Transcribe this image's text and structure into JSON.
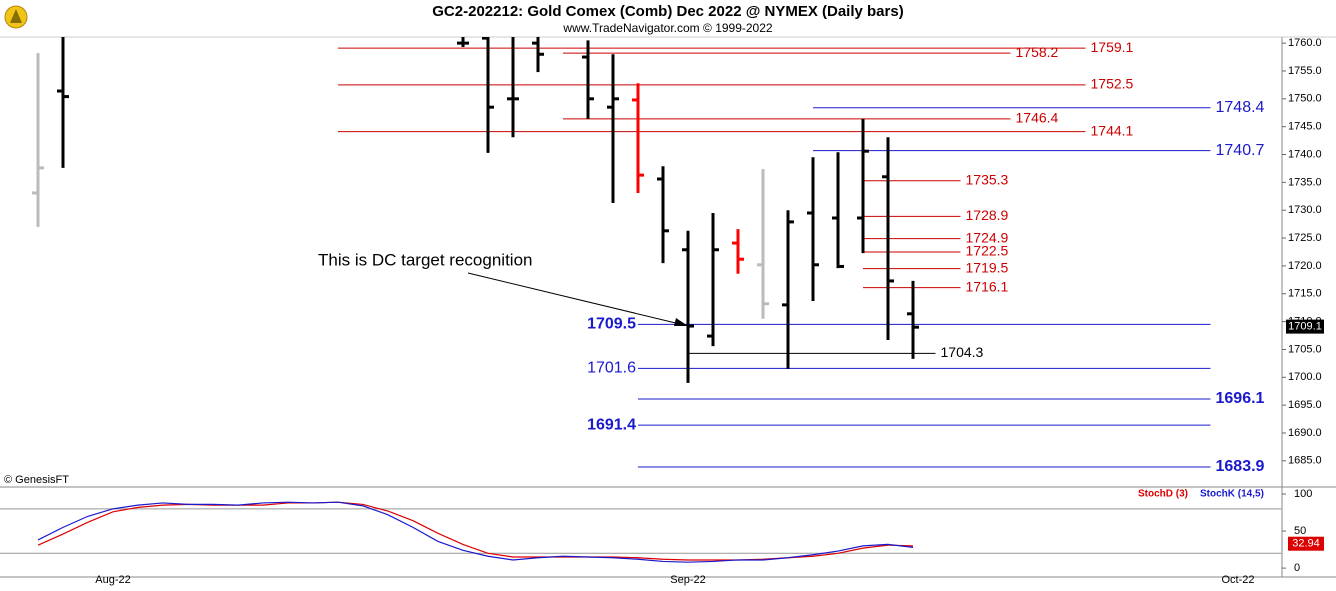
{
  "chart_data": [
    {
      "type": "ohlc",
      "title": "GC2-202212:  Gold Comex (Comb) Dec 2022 @ NYMEX  (Daily bars)",
      "subtitle": "www.TradeNavigator.com © 1999-2022",
      "copyright": "© GenesisFT",
      "categories": [
        null,
        null,
        null,
        "Aug-22",
        null,
        null,
        null,
        null,
        null,
        null,
        null,
        null,
        null,
        null,
        null,
        null,
        null,
        null,
        null,
        null,
        null,
        null,
        null,
        null,
        null,
        null,
        "Sep-22",
        null,
        null,
        null,
        null,
        null,
        null,
        null,
        null,
        null,
        null,
        null,
        null,
        null,
        null,
        null,
        null,
        null,
        null,
        null,
        null,
        null,
        "Oct-22",
        null
      ],
      "open": [
        1733.1,
        1751.4,
        null,
        null,
        null,
        null,
        null,
        null,
        null,
        null,
        null,
        null,
        null,
        null,
        null,
        null,
        null,
        1760,
        1760.9,
        1750,
        1760,
        null,
        1757.5,
        1748.5,
        1749.8,
        1735.6,
        1722.9,
        1707.4,
        1724.1,
        1720.2,
        1713.0,
        1729.5,
        1728.6,
        1728.6,
        1736.0,
        1711.4,
        null,
        null,
        null,
        null,
        null,
        null,
        null,
        null,
        null,
        null,
        null,
        null,
        null,
        null
      ],
      "high": [
        1758.2,
        1763,
        null,
        null,
        null,
        null,
        null,
        null,
        null,
        null,
        null,
        null,
        null,
        null,
        null,
        null,
        null,
        1763,
        1763,
        1763,
        1763,
        null,
        1760.5,
        1758.0,
        1752.8,
        1737.9,
        1726.3,
        1729.5,
        1726.6,
        1737.4,
        1730.0,
        1739.5,
        1740.4,
        1746.4,
        1743.1,
        1717.3,
        null,
        null,
        null,
        null,
        null,
        null,
        null,
        null,
        null,
        null,
        null,
        null,
        null,
        null
      ],
      "low": [
        1727.0,
        1737.6,
        null,
        null,
        null,
        null,
        null,
        null,
        null,
        null,
        null,
        null,
        null,
        null,
        null,
        null,
        null,
        1759.3,
        1740.3,
        1743.1,
        1754.8,
        null,
        1746.4,
        1731.3,
        1733.1,
        1720.5,
        1699.0,
        1705.6,
        1718.6,
        1710.5,
        1701.5,
        1713.7,
        1719.6,
        1722.3,
        1706.7,
        1703.3,
        null,
        null,
        null,
        null,
        null,
        null,
        null,
        null,
        null,
        null,
        null,
        null,
        null,
        null
      ],
      "close": [
        1737.6,
        1750.4,
        null,
        null,
        null,
        null,
        null,
        null,
        null,
        null,
        null,
        null,
        null,
        null,
        null,
        null,
        null,
        1760,
        1748.5,
        1750,
        1758,
        null,
        1750,
        1750,
        1736.3,
        1726.3,
        1709.2,
        1722.9,
        1721.2,
        1713.2,
        1727.9,
        1720.2,
        1719.9,
        1740.6,
        1717.3,
        1709.0,
        null,
        null,
        null,
        null,
        null,
        null,
        null,
        null,
        null,
        null,
        null,
        null,
        null,
        null
      ],
      "colors": [
        "#bbbbbb",
        "#000000",
        null,
        null,
        null,
        null,
        null,
        null,
        null,
        null,
        null,
        null,
        null,
        null,
        null,
        null,
        null,
        "#000000",
        "#000000",
        "#000000",
        "#000000",
        null,
        "#000000",
        "#000000",
        "#ff0000",
        "#000000",
        "#000000",
        "#000000",
        "#ff0000",
        "#bbbbbb",
        "#000000",
        "#000000",
        "#000000",
        "#000000",
        "#000000",
        "#000000",
        null,
        null,
        null,
        null,
        null,
        null,
        null,
        null,
        null,
        null,
        null,
        null,
        null,
        null
      ],
      "ylim": [
        1680.3,
        1761.1
      ],
      "yticks": [
        {
          "value": 1685,
          "label": "1685.0"
        },
        {
          "value": 1690,
          "label": "1690.0"
        },
        {
          "value": 1695,
          "label": "1695.0"
        },
        {
          "value": 1700,
          "label": "1700.0"
        },
        {
          "value": 1705,
          "label": "1705.0"
        },
        {
          "value": 1710,
          "label": "1710.0"
        },
        {
          "value": 1715,
          "label": "1715.0"
        },
        {
          "value": 1720,
          "label": "1720.0"
        },
        {
          "value": 1725,
          "label": "1725.0"
        },
        {
          "value": 1730,
          "label": "1730.0"
        },
        {
          "value": 1735,
          "label": "1735.0"
        },
        {
          "value": 1740,
          "label": "1740.0"
        },
        {
          "value": 1745,
          "label": "1745.0"
        },
        {
          "value": 1750,
          "label": "1750.0"
        },
        {
          "value": 1755,
          "label": "1755.0"
        },
        {
          "value": 1760,
          "label": "1760.0"
        }
      ],
      "levels": [
        {
          "value": 1759.1,
          "color": "#cc0000",
          "from": 12,
          "to": 41.9,
          "bold": false,
          "side": "right"
        },
        {
          "value": 1758.2,
          "color": "#cc0000",
          "from": 21,
          "to": 38.9,
          "bold": false,
          "side": "right"
        },
        {
          "value": 1752.5,
          "color": "#cc0000",
          "from": 12,
          "to": 41.9,
          "bold": false,
          "side": "right"
        },
        {
          "value": 1746.4,
          "color": "#cc0000",
          "from": 21,
          "to": 38.9,
          "bold": false,
          "side": "right"
        },
        {
          "value": 1744.1,
          "color": "#cc0000",
          "from": 12,
          "to": 41.9,
          "bold": false,
          "side": "right"
        },
        {
          "value": 1735.3,
          "color": "#cc0000",
          "from": 33,
          "to": 36.9,
          "bold": false,
          "side": "right"
        },
        {
          "value": 1728.9,
          "color": "#cc0000",
          "from": 33,
          "to": 36.9,
          "bold": false,
          "side": "right"
        },
        {
          "value": 1724.9,
          "color": "#cc0000",
          "from": 33,
          "to": 36.9,
          "bold": false,
          "side": "right"
        },
        {
          "value": 1722.5,
          "color": "#cc0000",
          "from": 33,
          "to": 36.9,
          "bold": false,
          "side": "right"
        },
        {
          "value": 1719.5,
          "color": "#cc0000",
          "from": 33,
          "to": 36.9,
          "bold": false,
          "side": "right"
        },
        {
          "value": 1716.1,
          "color": "#cc0000",
          "from": 33,
          "to": 36.9,
          "bold": false,
          "side": "right"
        },
        {
          "value": 1748.4,
          "color": "#1a1acc",
          "from": 31,
          "to": 46.9,
          "bold": false,
          "side": "right"
        },
        {
          "value": 1740.7,
          "color": "#1a1acc",
          "from": 31,
          "to": 46.9,
          "bold": false,
          "side": "right"
        },
        {
          "value": 1709.5,
          "color": "#1a1acc",
          "from": 24,
          "to": 46.9,
          "bold": true,
          "side": "left"
        },
        {
          "value": 1701.6,
          "color": "#1a1acc",
          "from": 24,
          "to": 46.9,
          "bold": false,
          "side": "left"
        },
        {
          "value": 1696.1,
          "color": "#1a1acc",
          "from": 24,
          "to": 46.9,
          "bold": true,
          "side": "right"
        },
        {
          "value": 1691.4,
          "color": "#1a1acc",
          "from": 24,
          "to": 46.9,
          "bold": true,
          "side": "left"
        },
        {
          "value": 1683.9,
          "color": "#1a1acc",
          "from": 24,
          "to": 46.9,
          "bold": true,
          "side": "right"
        },
        {
          "value": 1704.3,
          "color": "#000000",
          "from": 26,
          "to": 35.9,
          "bold": false,
          "side": "right"
        }
      ],
      "annotation": "This is DC target recognition",
      "last_price": 1709.1
    },
    {
      "type": "line",
      "series": [
        {
          "name": "StochD (3)",
          "color": "#dd0000",
          "values": [
            31,
            46,
            62,
            76,
            82,
            85,
            86,
            85,
            85,
            85,
            88,
            88,
            89,
            86,
            77,
            64,
            47,
            32,
            20,
            15,
            15,
            15,
            15,
            15,
            14,
            12,
            11,
            11,
            11,
            12,
            14,
            16,
            20,
            27,
            31,
            30,
            null,
            null,
            null,
            null,
            null,
            null,
            null,
            null,
            null,
            null,
            null,
            null,
            null,
            null
          ]
        },
        {
          "name": "StochK (14,5)",
          "color": "#1a1acc",
          "values": [
            38,
            55,
            70,
            80,
            85,
            88,
            86,
            86,
            85,
            88,
            89,
            88,
            89,
            84,
            72,
            55,
            36,
            24,
            16,
            11,
            14,
            16,
            15,
            14,
            12,
            9,
            8,
            9,
            11,
            11,
            14,
            18,
            23,
            30,
            32,
            28,
            null,
            null,
            null,
            null,
            null,
            null,
            null,
            null,
            null,
            null,
            null,
            null,
            null,
            null
          ]
        }
      ],
      "ylim": [
        -12,
        109.5
      ],
      "yticks": [
        0,
        50,
        100
      ],
      "hlines": [
        80,
        20
      ],
      "last_value": 32.94
    }
  ]
}
